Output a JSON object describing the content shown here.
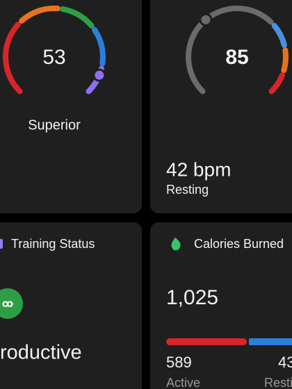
{
  "cards": [
    {
      "value": "53",
      "label": "Superior"
    },
    {
      "value": "85",
      "reading": "42 bpm",
      "reading_label": "Resting"
    },
    {
      "title": "Training Status",
      "status": "roductive"
    },
    {
      "title": "Calories Burned",
      "total": "1,025",
      "active": "589",
      "active_label": "Active",
      "resting": "43",
      "resting_label": "Resti"
    }
  ]
}
